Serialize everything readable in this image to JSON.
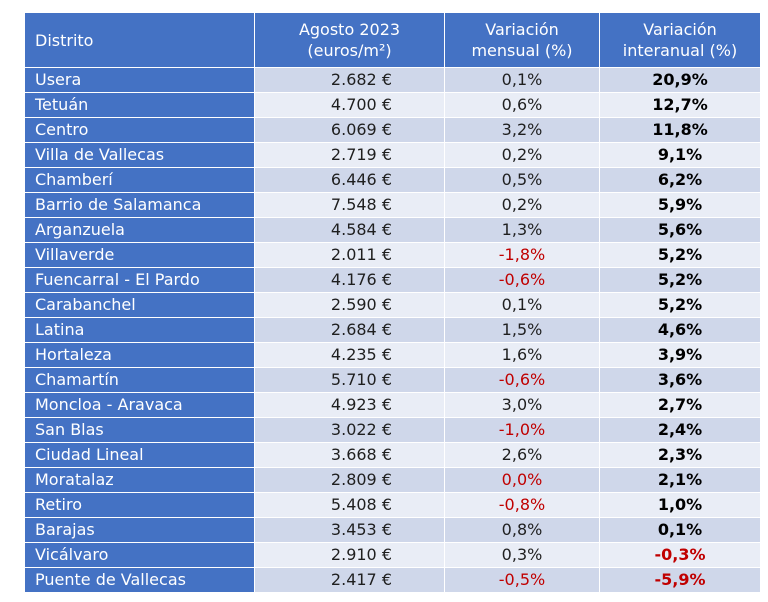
{
  "header": {
    "district": "Distrito",
    "price_line1": "Agosto 2023",
    "price_line2": "(euros/m²)",
    "monthly_line1": "Variación",
    "monthly_line2": "mensual (%)",
    "yearly_line1": "Variación",
    "yearly_line2": "interanual (%)"
  },
  "colors": {
    "header_bg": "#4472c4",
    "row_dark": "#cfd7ea",
    "row_light": "#e9edf6",
    "negative": "#c00000"
  },
  "rows": [
    {
      "district": "Usera",
      "price": "2.682 €",
      "monthly": "0,1%",
      "yearly": "20,9%"
    },
    {
      "district": "Tetuán",
      "price": "4.700 €",
      "monthly": "0,6%",
      "yearly": "12,7%"
    },
    {
      "district": "Centro",
      "price": "6.069 €",
      "monthly": "3,2%",
      "yearly": "11,8%"
    },
    {
      "district": "Villa de Vallecas",
      "price": "2.719 €",
      "monthly": "0,2%",
      "yearly": "9,1%"
    },
    {
      "district": "Chamberí",
      "price": "6.446 €",
      "monthly": "0,5%",
      "yearly": "6,2%"
    },
    {
      "district": "Barrio de Salamanca",
      "price": "7.548 €",
      "monthly": "0,2%",
      "yearly": "5,9%"
    },
    {
      "district": "Arganzuela",
      "price": "4.584 €",
      "monthly": "1,3%",
      "yearly": "5,6%"
    },
    {
      "district": "Villaverde",
      "price": "2.011 €",
      "monthly": "-1,8%",
      "yearly": "5,2%"
    },
    {
      "district": "Fuencarral - El Pardo",
      "price": "4.176 €",
      "monthly": "-0,6%",
      "yearly": "5,2%"
    },
    {
      "district": "Carabanchel",
      "price": "2.590 €",
      "monthly": "0,1%",
      "yearly": "5,2%"
    },
    {
      "district": "Latina",
      "price": "2.684 €",
      "monthly": "1,5%",
      "yearly": "4,6%"
    },
    {
      "district": "Hortaleza",
      "price": "4.235 €",
      "monthly": "1,6%",
      "yearly": "3,9%"
    },
    {
      "district": "Chamartín",
      "price": "5.710 €",
      "monthly": "-0,6%",
      "yearly": "3,6%"
    },
    {
      "district": "Moncloa - Aravaca",
      "price": "4.923 €",
      "monthly": "3,0%",
      "yearly": "2,7%"
    },
    {
      "district": "San Blas",
      "price": "3.022 €",
      "monthly": "-1,0%",
      "yearly": "2,4%"
    },
    {
      "district": "Ciudad Lineal",
      "price": "3.668 €",
      "monthly": "2,6%",
      "yearly": "2,3%"
    },
    {
      "district": "Moratalaz",
      "price": "2.809 €",
      "monthly": "0,0%",
      "yearly": "2,1%",
      "monthly_negative_style": true
    },
    {
      "district": "Retiro",
      "price": "5.408 €",
      "monthly": "-0,8%",
      "yearly": "1,0%"
    },
    {
      "district": "Barajas",
      "price": "3.453 €",
      "monthly": "0,8%",
      "yearly": "0,1%"
    },
    {
      "district": "Vicálvaro",
      "price": "2.910 €",
      "monthly": "0,3%",
      "yearly": "-0,3%"
    },
    {
      "district": "Puente de Vallecas",
      "price": "2.417 €",
      "monthly": "-0,5%",
      "yearly": "-5,9%"
    }
  ]
}
